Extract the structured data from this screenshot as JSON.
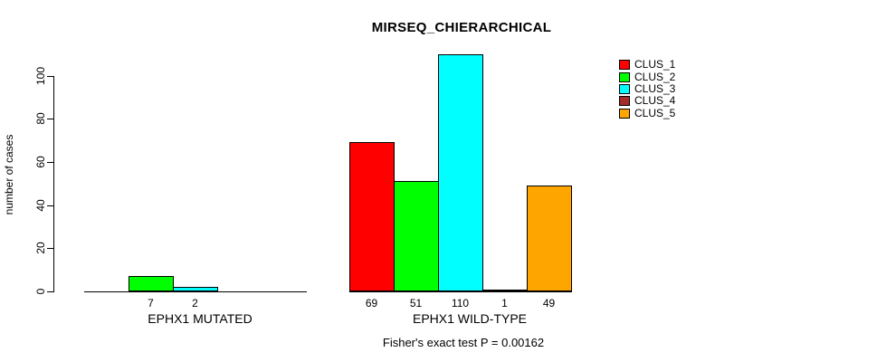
{
  "chart_data": {
    "type": "bar",
    "title": "MIRSEQ_CHIERARCHICAL",
    "xlabel": "",
    "ylabel": "number of cases",
    "annotation": "Fisher's exact test P = 0.00162",
    "ylim": [
      0,
      110
    ],
    "yticks": [
      0,
      20,
      40,
      60,
      80,
      100
    ],
    "grid": false,
    "legend_position": "top-right",
    "categories": [
      "EPHX1 MUTATED",
      "EPHX1 WILD-TYPE"
    ],
    "series": [
      {
        "name": "CLUS_1",
        "color": "#FF0000",
        "values": [
          0,
          69
        ]
      },
      {
        "name": "CLUS_2",
        "color": "#00FF00",
        "values": [
          7,
          51
        ]
      },
      {
        "name": "CLUS_3",
        "color": "#00FFFF",
        "values": [
          2,
          110
        ]
      },
      {
        "name": "CLUS_4",
        "color": "#A52A2A",
        "values": [
          0,
          1
        ]
      },
      {
        "name": "CLUS_5",
        "color": "#FFA500",
        "values": [
          0,
          49
        ]
      }
    ],
    "bar_value_labels": [
      [
        "",
        "7",
        "2",
        "",
        ""
      ],
      [
        "69",
        "51",
        "110",
        "1",
        "49"
      ]
    ]
  }
}
